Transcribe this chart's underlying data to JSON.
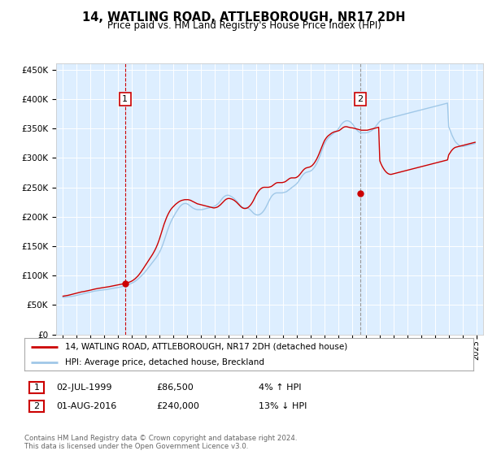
{
  "title": "14, WATLING ROAD, ATTLEBOROUGH, NR17 2DH",
  "subtitle": "Price paid vs. HM Land Registry's House Price Index (HPI)",
  "legend_line1": "14, WATLING ROAD, ATTLEBOROUGH, NR17 2DH (detached house)",
  "legend_line2": "HPI: Average price, detached house, Breckland",
  "annotation1_date": "02-JUL-1999",
  "annotation1_price": "£86,500",
  "annotation1_hpi": "4% ↑ HPI",
  "annotation2_date": "01-AUG-2016",
  "annotation2_price": "£240,000",
  "annotation2_hpi": "13% ↓ HPI",
  "footer": "Contains HM Land Registry data © Crown copyright and database right 2024.\nThis data is licensed under the Open Government Licence v3.0.",
  "sale1_year": 1999.5,
  "sale1_value": 86500,
  "sale2_year": 2016.58,
  "sale2_value": 240000,
  "hpi_color": "#a0c8e8",
  "property_color": "#cc0000",
  "sale_dot_color": "#cc0000",
  "vline_color": "#cc0000",
  "vline2_color": "#999999",
  "background_color": "#ddeeff",
  "ylim_min": 0,
  "ylim_max": 460000,
  "xlim_min": 1994.5,
  "xlim_max": 2025.5,
  "hpi_years": [
    1995.0,
    1995.083,
    1995.167,
    1995.25,
    1995.333,
    1995.417,
    1995.5,
    1995.583,
    1995.667,
    1995.75,
    1995.833,
    1995.917,
    1996.0,
    1996.083,
    1996.167,
    1996.25,
    1996.333,
    1996.417,
    1996.5,
    1996.583,
    1996.667,
    1996.75,
    1996.833,
    1996.917,
    1997.0,
    1997.083,
    1997.167,
    1997.25,
    1997.333,
    1997.417,
    1997.5,
    1997.583,
    1997.667,
    1997.75,
    1997.833,
    1997.917,
    1998.0,
    1998.083,
    1998.167,
    1998.25,
    1998.333,
    1998.417,
    1998.5,
    1998.583,
    1998.667,
    1998.75,
    1998.833,
    1998.917,
    1999.0,
    1999.083,
    1999.167,
    1999.25,
    1999.333,
    1999.417,
    1999.5,
    1999.583,
    1999.667,
    1999.75,
    1999.833,
    1999.917,
    2000.0,
    2000.083,
    2000.167,
    2000.25,
    2000.333,
    2000.417,
    2000.5,
    2000.583,
    2000.667,
    2000.75,
    2000.833,
    2000.917,
    2001.0,
    2001.083,
    2001.167,
    2001.25,
    2001.333,
    2001.417,
    2001.5,
    2001.583,
    2001.667,
    2001.75,
    2001.833,
    2001.917,
    2002.0,
    2002.083,
    2002.167,
    2002.25,
    2002.333,
    2002.417,
    2002.5,
    2002.583,
    2002.667,
    2002.75,
    2002.833,
    2002.917,
    2003.0,
    2003.083,
    2003.167,
    2003.25,
    2003.333,
    2003.417,
    2003.5,
    2003.583,
    2003.667,
    2003.75,
    2003.833,
    2003.917,
    2004.0,
    2004.083,
    2004.167,
    2004.25,
    2004.333,
    2004.417,
    2004.5,
    2004.583,
    2004.667,
    2004.75,
    2004.833,
    2004.917,
    2005.0,
    2005.083,
    2005.167,
    2005.25,
    2005.333,
    2005.417,
    2005.5,
    2005.583,
    2005.667,
    2005.75,
    2005.833,
    2005.917,
    2006.0,
    2006.083,
    2006.167,
    2006.25,
    2006.333,
    2006.417,
    2006.5,
    2006.583,
    2006.667,
    2006.75,
    2006.833,
    2006.917,
    2007.0,
    2007.083,
    2007.167,
    2007.25,
    2007.333,
    2007.417,
    2007.5,
    2007.583,
    2007.667,
    2007.75,
    2007.833,
    2007.917,
    2008.0,
    2008.083,
    2008.167,
    2008.25,
    2008.333,
    2008.417,
    2008.5,
    2008.583,
    2008.667,
    2008.75,
    2008.833,
    2008.917,
    2009.0,
    2009.083,
    2009.167,
    2009.25,
    2009.333,
    2009.417,
    2009.5,
    2009.583,
    2009.667,
    2009.75,
    2009.833,
    2009.917,
    2010.0,
    2010.083,
    2010.167,
    2010.25,
    2010.333,
    2010.417,
    2010.5,
    2010.583,
    2010.667,
    2010.75,
    2010.833,
    2010.917,
    2011.0,
    2011.083,
    2011.167,
    2011.25,
    2011.333,
    2011.417,
    2011.5,
    2011.583,
    2011.667,
    2011.75,
    2011.833,
    2011.917,
    2012.0,
    2012.083,
    2012.167,
    2012.25,
    2012.333,
    2012.417,
    2012.5,
    2012.583,
    2012.667,
    2012.75,
    2012.833,
    2012.917,
    2013.0,
    2013.083,
    2013.167,
    2013.25,
    2013.333,
    2013.417,
    2013.5,
    2013.583,
    2013.667,
    2013.75,
    2013.833,
    2013.917,
    2014.0,
    2014.083,
    2014.167,
    2014.25,
    2014.333,
    2014.417,
    2014.5,
    2014.583,
    2014.667,
    2014.75,
    2014.833,
    2014.917,
    2015.0,
    2015.083,
    2015.167,
    2015.25,
    2015.333,
    2015.417,
    2015.5,
    2015.583,
    2015.667,
    2015.75,
    2015.833,
    2015.917,
    2016.0,
    2016.083,
    2016.167,
    2016.25,
    2016.333,
    2016.417,
    2016.5,
    2016.583,
    2016.667,
    2016.75,
    2016.833,
    2016.917,
    2017.0,
    2017.083,
    2017.167,
    2017.25,
    2017.333,
    2017.417,
    2017.5,
    2017.583,
    2017.667,
    2017.75,
    2017.833,
    2017.917,
    2018.0,
    2018.083,
    2018.167,
    2018.25,
    2018.333,
    2018.417,
    2018.5,
    2018.583,
    2018.667,
    2018.75,
    2018.833,
    2018.917,
    2019.0,
    2019.083,
    2019.167,
    2019.25,
    2019.333,
    2019.417,
    2019.5,
    2019.583,
    2019.667,
    2019.75,
    2019.833,
    2019.917,
    2020.0,
    2020.083,
    2020.167,
    2020.25,
    2020.333,
    2020.417,
    2020.5,
    2020.583,
    2020.667,
    2020.75,
    2020.833,
    2020.917,
    2021.0,
    2021.083,
    2021.167,
    2021.25,
    2021.333,
    2021.417,
    2021.5,
    2021.583,
    2021.667,
    2021.75,
    2021.833,
    2021.917,
    2022.0,
    2022.083,
    2022.167,
    2022.25,
    2022.333,
    2022.417,
    2022.5,
    2022.583,
    2022.667,
    2022.75,
    2022.833,
    2022.917,
    2023.0,
    2023.083,
    2023.167,
    2023.25,
    2023.333,
    2023.417,
    2023.5,
    2023.583,
    2023.667,
    2023.75,
    2023.833,
    2023.917,
    2024.0,
    2024.083,
    2024.167,
    2024.25,
    2024.333,
    2024.417,
    2024.5,
    2024.583,
    2024.667,
    2024.75,
    2024.833,
    2024.917
  ],
  "hpi_values": [
    63000,
    63200,
    63400,
    63600,
    63800,
    64000,
    64200,
    64500,
    64800,
    65100,
    65500,
    65900,
    66400,
    66900,
    67400,
    67900,
    68400,
    68900,
    69400,
    69900,
    70300,
    70700,
    71100,
    71500,
    72000,
    72500,
    73000,
    73500,
    73800,
    74100,
    74400,
    74700,
    75000,
    75200,
    75400,
    75600,
    75800,
    76000,
    76300,
    76600,
    77000,
    77400,
    77800,
    78200,
    78500,
    78800,
    79100,
    79400,
    79700,
    80100,
    80500,
    81000,
    81500,
    82000,
    82700,
    83400,
    84100,
    84800,
    85500,
    86300,
    87200,
    88200,
    89300,
    90600,
    92000,
    93600,
    95300,
    97100,
    99000,
    101000,
    103000,
    105000,
    107500,
    110000,
    112500,
    115000,
    117500,
    120000,
    122500,
    125000,
    127500,
    130000,
    133000,
    136000,
    139500,
    143500,
    148000,
    153000,
    158500,
    164500,
    170500,
    176500,
    182000,
    187000,
    191500,
    195500,
    199000,
    202500,
    206000,
    209000,
    212000,
    215000,
    217500,
    219500,
    221000,
    222000,
    222500,
    222500,
    222000,
    221000,
    219500,
    218000,
    216500,
    215000,
    214000,
    213000,
    212500,
    212000,
    212000,
    212000,
    212000,
    212000,
    212500,
    213000,
    213500,
    214000,
    214500,
    215000,
    215500,
    216000,
    216500,
    217000,
    218000,
    219000,
    220500,
    222000,
    224000,
    226500,
    229000,
    231500,
    233500,
    235000,
    236000,
    236500,
    236500,
    236000,
    235000,
    234000,
    232500,
    231000,
    229000,
    227000,
    225000,
    222500,
    220000,
    218000,
    216500,
    215500,
    215000,
    215000,
    215000,
    214500,
    213500,
    212000,
    210000,
    208000,
    206000,
    204500,
    203500,
    203000,
    203000,
    203500,
    204500,
    206000,
    208000,
    210500,
    213500,
    217000,
    221000,
    225000,
    229000,
    232500,
    235500,
    237500,
    239000,
    240000,
    240500,
    240500,
    240500,
    240500,
    240500,
    240500,
    241000,
    241500,
    242000,
    243000,
    244500,
    246000,
    247500,
    249000,
    250500,
    252000,
    253500,
    255000,
    257000,
    259500,
    262500,
    265500,
    268500,
    271000,
    273000,
    274500,
    275500,
    276000,
    276500,
    277000,
    278000,
    279500,
    281500,
    284000,
    287000,
    290500,
    294500,
    299000,
    304000,
    309500,
    315000,
    320000,
    324500,
    328000,
    331000,
    333500,
    335500,
    337500,
    339000,
    340500,
    342000,
    343500,
    345000,
    347000,
    349500,
    352500,
    355500,
    358000,
    360000,
    361500,
    362500,
    363000,
    363000,
    362500,
    361500,
    360000,
    358000,
    355500,
    352500,
    350000,
    347500,
    345500,
    344000,
    343000,
    342500,
    342500,
    342500,
    342500,
    342500,
    343000,
    343500,
    344500,
    345500,
    346500,
    348000,
    350000,
    352500,
    355000,
    357500,
    360000,
    362000,
    363500,
    364500,
    365000,
    365500,
    366000,
    366500,
    367000,
    367500,
    368000,
    368500,
    369000,
    369500,
    370000,
    370500,
    371000,
    371500,
    372000,
    372500,
    373000,
    373500,
    374000,
    374500,
    375000,
    375500,
    376000,
    376500,
    377000,
    377500,
    378000,
    378500,
    379000,
    379500,
    380000,
    380500,
    381000,
    381500,
    382000,
    382500,
    383000,
    383500,
    384000,
    384500,
    385000,
    385500,
    386000,
    386500,
    387000,
    387500,
    388000,
    388500,
    389000,
    389500,
    390000,
    390500,
    391000,
    391500,
    392000,
    392500,
    393000,
    353000,
    348000,
    343000,
    338000,
    334000,
    330000,
    327000,
    325000,
    323000,
    321500,
    320500,
    320000,
    319500,
    319500,
    320000,
    320500,
    321000,
    321500,
    322000,
    322500,
    323000,
    323500,
    324000,
    324500
  ],
  "prop_years": [
    1995.0,
    1995.083,
    1995.167,
    1995.25,
    1995.333,
    1995.417,
    1995.5,
    1995.583,
    1995.667,
    1995.75,
    1995.833,
    1995.917,
    1996.0,
    1996.083,
    1996.167,
    1996.25,
    1996.333,
    1996.417,
    1996.5,
    1996.583,
    1996.667,
    1996.75,
    1996.833,
    1996.917,
    1997.0,
    1997.083,
    1997.167,
    1997.25,
    1997.333,
    1997.417,
    1997.5,
    1997.583,
    1997.667,
    1997.75,
    1997.833,
    1997.917,
    1998.0,
    1998.083,
    1998.167,
    1998.25,
    1998.333,
    1998.417,
    1998.5,
    1998.583,
    1998.667,
    1998.75,
    1998.833,
    1998.917,
    1999.0,
    1999.083,
    1999.167,
    1999.25,
    1999.333,
    1999.417,
    1999.5,
    1999.583,
    1999.667,
    1999.75,
    1999.833,
    1999.917,
    2000.0,
    2000.083,
    2000.167,
    2000.25,
    2000.333,
    2000.417,
    2000.5,
    2000.583,
    2000.667,
    2000.75,
    2000.833,
    2000.917,
    2001.0,
    2001.083,
    2001.167,
    2001.25,
    2001.333,
    2001.417,
    2001.5,
    2001.583,
    2001.667,
    2001.75,
    2001.833,
    2001.917,
    2002.0,
    2002.083,
    2002.167,
    2002.25,
    2002.333,
    2002.417,
    2002.5,
    2002.583,
    2002.667,
    2002.75,
    2002.833,
    2002.917,
    2003.0,
    2003.083,
    2003.167,
    2003.25,
    2003.333,
    2003.417,
    2003.5,
    2003.583,
    2003.667,
    2003.75,
    2003.833,
    2003.917,
    2004.0,
    2004.083,
    2004.167,
    2004.25,
    2004.333,
    2004.417,
    2004.5,
    2004.583,
    2004.667,
    2004.75,
    2004.833,
    2004.917,
    2005.0,
    2005.083,
    2005.167,
    2005.25,
    2005.333,
    2005.417,
    2005.5,
    2005.583,
    2005.667,
    2005.75,
    2005.833,
    2005.917,
    2006.0,
    2006.083,
    2006.167,
    2006.25,
    2006.333,
    2006.417,
    2006.5,
    2006.583,
    2006.667,
    2006.75,
    2006.833,
    2006.917,
    2007.0,
    2007.083,
    2007.167,
    2007.25,
    2007.333,
    2007.417,
    2007.5,
    2007.583,
    2007.667,
    2007.75,
    2007.833,
    2007.917,
    2008.0,
    2008.083,
    2008.167,
    2008.25,
    2008.333,
    2008.417,
    2008.5,
    2008.583,
    2008.667,
    2008.75,
    2008.833,
    2008.917,
    2009.0,
    2009.083,
    2009.167,
    2009.25,
    2009.333,
    2009.417,
    2009.5,
    2009.583,
    2009.667,
    2009.75,
    2009.833,
    2009.917,
    2010.0,
    2010.083,
    2010.167,
    2010.25,
    2010.333,
    2010.417,
    2010.5,
    2010.583,
    2010.667,
    2010.75,
    2010.833,
    2010.917,
    2011.0,
    2011.083,
    2011.167,
    2011.25,
    2011.333,
    2011.417,
    2011.5,
    2011.583,
    2011.667,
    2011.75,
    2011.833,
    2011.917,
    2012.0,
    2012.083,
    2012.167,
    2012.25,
    2012.333,
    2012.417,
    2012.5,
    2012.583,
    2012.667,
    2012.75,
    2012.833,
    2012.917,
    2013.0,
    2013.083,
    2013.167,
    2013.25,
    2013.333,
    2013.417,
    2013.5,
    2013.583,
    2013.667,
    2013.75,
    2013.833,
    2013.917,
    2014.0,
    2014.083,
    2014.167,
    2014.25,
    2014.333,
    2014.417,
    2014.5,
    2014.583,
    2014.667,
    2014.75,
    2014.833,
    2014.917,
    2015.0,
    2015.083,
    2015.167,
    2015.25,
    2015.333,
    2015.417,
    2015.5,
    2015.583,
    2015.667,
    2015.75,
    2015.833,
    2015.917,
    2016.0,
    2016.083,
    2016.167,
    2016.25,
    2016.333,
    2016.417,
    2016.5,
    2016.583,
    2016.667,
    2016.75,
    2016.833,
    2016.917,
    2017.0,
    2017.083,
    2017.167,
    2017.25,
    2017.333,
    2017.417,
    2017.5,
    2017.583,
    2017.667,
    2017.75,
    2017.833,
    2017.917,
    2018.0,
    2018.083,
    2018.167,
    2018.25,
    2018.333,
    2018.417,
    2018.5,
    2018.583,
    2018.667,
    2018.75,
    2018.833,
    2018.917,
    2019.0,
    2019.083,
    2019.167,
    2019.25,
    2019.333,
    2019.417,
    2019.5,
    2019.583,
    2019.667,
    2019.75,
    2019.833,
    2019.917,
    2020.0,
    2020.083,
    2020.167,
    2020.25,
    2020.333,
    2020.417,
    2020.5,
    2020.583,
    2020.667,
    2020.75,
    2020.833,
    2020.917,
    2021.0,
    2021.083,
    2021.167,
    2021.25,
    2021.333,
    2021.417,
    2021.5,
    2021.583,
    2021.667,
    2021.75,
    2021.833,
    2021.917,
    2022.0,
    2022.083,
    2022.167,
    2022.25,
    2022.333,
    2022.417,
    2022.5,
    2022.583,
    2022.667,
    2022.75,
    2022.833,
    2022.917,
    2023.0,
    2023.083,
    2023.167,
    2023.25,
    2023.333,
    2023.417,
    2023.5,
    2023.583,
    2023.667,
    2023.75,
    2023.833,
    2023.917,
    2024.0,
    2024.083,
    2024.167,
    2024.25,
    2024.333,
    2024.417,
    2024.5,
    2024.583,
    2024.667,
    2024.75,
    2024.833,
    2024.917
  ],
  "prop_values": [
    65000,
    65300,
    65600,
    65900,
    66300,
    66700,
    67200,
    67700,
    68200,
    68700,
    69200,
    69700,
    70200,
    70700,
    71200,
    71700,
    72200,
    72500,
    72800,
    73200,
    73600,
    74000,
    74400,
    74800,
    75300,
    75800,
    76300,
    76800,
    77200,
    77600,
    78000,
    78300,
    78600,
    78900,
    79200,
    79500,
    79800,
    80100,
    80400,
    80700,
    81100,
    81500,
    81900,
    82300,
    82700,
    83100,
    83500,
    83900,
    84200,
    84600,
    85000,
    85500,
    86000,
    86200,
    86500,
    87000,
    87600,
    88300,
    89000,
    89800,
    90800,
    92000,
    93400,
    95000,
    96800,
    98800,
    101000,
    103500,
    106200,
    109000,
    112000,
    115000,
    118000,
    121000,
    124000,
    127000,
    130000,
    133000,
    136000,
    139500,
    143000,
    147000,
    151500,
    156500,
    162000,
    168000,
    174500,
    181000,
    187000,
    192500,
    197500,
    202000,
    206000,
    209500,
    212500,
    215000,
    217000,
    219000,
    221000,
    222500,
    224000,
    225500,
    226500,
    227500,
    228000,
    228500,
    229000,
    229000,
    229000,
    229000,
    228500,
    228000,
    227000,
    226000,
    225000,
    224000,
    223000,
    222000,
    221500,
    221000,
    220500,
    220000,
    219500,
    219000,
    218500,
    218000,
    217500,
    217000,
    216500,
    216000,
    215500,
    215000,
    215000,
    215500,
    216000,
    217000,
    218500,
    220000,
    222000,
    224000,
    226000,
    228000,
    229500,
    230500,
    231000,
    231000,
    230500,
    230000,
    229000,
    228000,
    226500,
    225000,
    223000,
    221000,
    219000,
    217000,
    215500,
    214500,
    214000,
    214000,
    214500,
    215500,
    217000,
    219000,
    221500,
    224500,
    228000,
    232000,
    236000,
    239500,
    242500,
    245000,
    247000,
    248500,
    249500,
    250000,
    250000,
    250000,
    250000,
    250000,
    250500,
    251000,
    252000,
    253500,
    255000,
    256500,
    257500,
    258000,
    258000,
    258000,
    258000,
    258000,
    258500,
    259000,
    260000,
    261500,
    263000,
    264500,
    265500,
    266000,
    266000,
    266000,
    266000,
    266500,
    267500,
    269000,
    271000,
    273500,
    276000,
    278500,
    280500,
    282000,
    283000,
    283500,
    284000,
    284500,
    285500,
    287000,
    289000,
    291500,
    294500,
    298000,
    302000,
    306500,
    311500,
    316500,
    321500,
    326000,
    330000,
    333000,
    335500,
    337500,
    339000,
    340500,
    342000,
    343000,
    344000,
    344500,
    345000,
    345500,
    346000,
    347000,
    348500,
    350000,
    351500,
    352500,
    353000,
    353000,
    352500,
    352000,
    351500,
    351000,
    351000,
    350500,
    350000,
    349500,
    349000,
    348500,
    348000,
    347500,
    347000,
    347000,
    347000,
    347000,
    347000,
    347000,
    347500,
    348000,
    348500,
    349000,
    349500,
    350000,
    350500,
    351000,
    351500,
    352000,
    295000,
    290000,
    286000,
    282500,
    279500,
    277000,
    275000,
    273500,
    272500,
    272000,
    272000,
    272500,
    273000,
    273500,
    274000,
    274500,
    275000,
    275500,
    276000,
    276500,
    277000,
    277500,
    278000,
    278500,
    279000,
    279500,
    280000,
    280500,
    281000,
    281500,
    282000,
    282500,
    283000,
    283500,
    284000,
    284500,
    285000,
    285500,
    286000,
    286500,
    287000,
    287500,
    288000,
    288500,
    289000,
    289500,
    290000,
    290500,
    291000,
    291500,
    292000,
    292500,
    293000,
    293500,
    294000,
    294500,
    295000,
    295500,
    296000,
    296500,
    305000,
    308000,
    311000,
    313500,
    315500,
    317000,
    318000,
    318500,
    319000,
    319500,
    320000,
    320500,
    321000,
    321500,
    322000,
    322500,
    323000,
    323500,
    324000,
    324500,
    325000,
    325500,
    326000,
    326500
  ]
}
